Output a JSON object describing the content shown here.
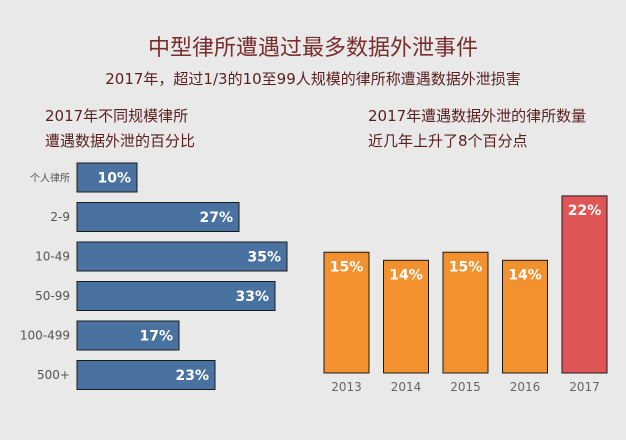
{
  "title": "中型律所遭遇过最多数据外泄事件",
  "subtitle": "2017年，超过1/3的10至99人规模的律所称遭遇数据外泄损害",
  "colors": {
    "background": "#e9e9e9",
    "left_bar": "#4a72a1",
    "right_bar_normal": "#f2912d",
    "right_bar_highlight": "#e05555",
    "title": "#7a2d2d"
  },
  "chart_data": [
    {
      "type": "bar",
      "orientation": "horizontal",
      "title_lines": [
        "2017年不同规模律所",
        "遭遇数据外泄的百分比"
      ],
      "categories": [
        "个人律所",
        "2-9",
        "10-49",
        "50-99",
        "100-499",
        "500+"
      ],
      "values": [
        10,
        27,
        35,
        33,
        17,
        23
      ],
      "value_labels": [
        "10%",
        "27%",
        "35%",
        "33%",
        "17%",
        "23%"
      ]
    },
    {
      "type": "bar",
      "orientation": "vertical",
      "title_lines": [
        "2017年遭遇数据外泄的律所数量",
        "近几年上升了8个百分点"
      ],
      "categories": [
        "2013",
        "2014",
        "2015",
        "2016",
        "2017"
      ],
      "values": [
        15,
        14,
        15,
        14,
        22
      ],
      "value_labels": [
        "15%",
        "14%",
        "15%",
        "14%",
        "22%"
      ],
      "highlight_index": 4
    }
  ]
}
